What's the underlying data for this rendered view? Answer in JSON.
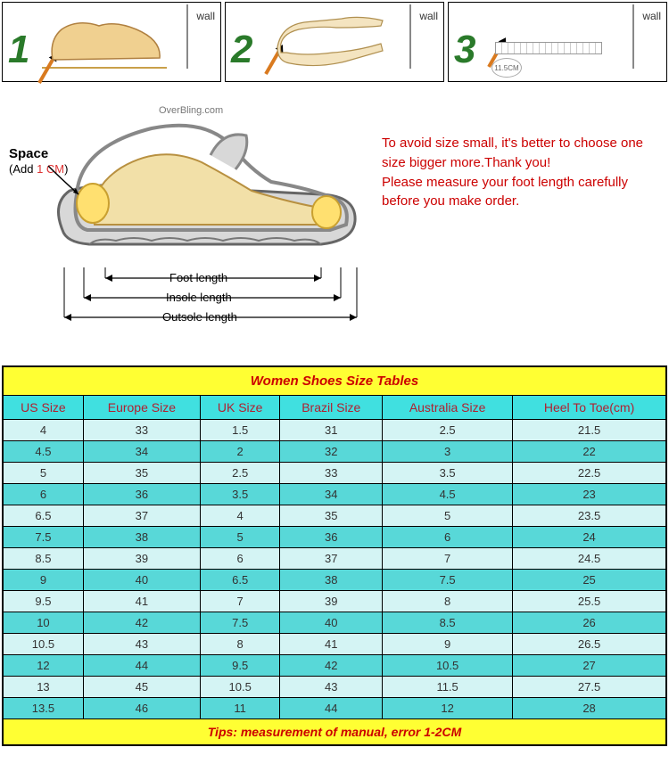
{
  "panels": {
    "n1": "1",
    "n2": "2",
    "n3": "3",
    "wall": "wall",
    "circle": "11.5CM"
  },
  "diagram": {
    "space": "Space",
    "add_prefix": "(Add ",
    "add_cm": "1 CM",
    "add_suffix": ")",
    "watermark": "OverBling.com",
    "foot_len": "Foot length",
    "insole_len": "Insole length",
    "outsole_len": "Outsole length"
  },
  "advice": {
    "line1": "To avoid size small, it's better to choose one size bigger more.Thank you!",
    "line2": "Please measure your foot length carefully before you make order."
  },
  "table": {
    "title": "Women Shoes Size Tables",
    "headers": [
      "US Size",
      "Europe Size",
      "UK Size",
      "Brazil Size",
      "Australia Size",
      "Heel To Toe(cm)"
    ],
    "rows": [
      [
        "4",
        "33",
        "1.5",
        "31",
        "2.5",
        "21.5"
      ],
      [
        "4.5",
        "34",
        "2",
        "32",
        "3",
        "22"
      ],
      [
        "5",
        "35",
        "2.5",
        "33",
        "3.5",
        "22.5"
      ],
      [
        "6",
        "36",
        "3.5",
        "34",
        "4.5",
        "23"
      ],
      [
        "6.5",
        "37",
        "4",
        "35",
        "5",
        "23.5"
      ],
      [
        "7.5",
        "38",
        "5",
        "36",
        "6",
        "24"
      ],
      [
        "8.5",
        "39",
        "6",
        "37",
        "7",
        "24.5"
      ],
      [
        "9",
        "40",
        "6.5",
        "38",
        "7.5",
        "25"
      ],
      [
        "9.5",
        "41",
        "7",
        "39",
        "8",
        "25.5"
      ],
      [
        "10",
        "42",
        "7.5",
        "40",
        "8.5",
        "26"
      ],
      [
        "10.5",
        "43",
        "8",
        "41",
        "9",
        "26.5"
      ],
      [
        "12",
        "44",
        "9.5",
        "42",
        "10.5",
        "27"
      ],
      [
        "13",
        "45",
        "10.5",
        "43",
        "11.5",
        "27.5"
      ],
      [
        "13.5",
        "46",
        "11",
        "44",
        "12",
        "28"
      ]
    ],
    "tips": "Tips: measurement of manual, error 1-2CM",
    "colors": {
      "title_bg": "#ffff33",
      "header_bg": "#40e0e0",
      "row_light": "#d4f4f4",
      "row_dark": "#58d8d8",
      "border": "#000000",
      "title_text": "#cc0000",
      "header_text": "#b02030"
    }
  }
}
